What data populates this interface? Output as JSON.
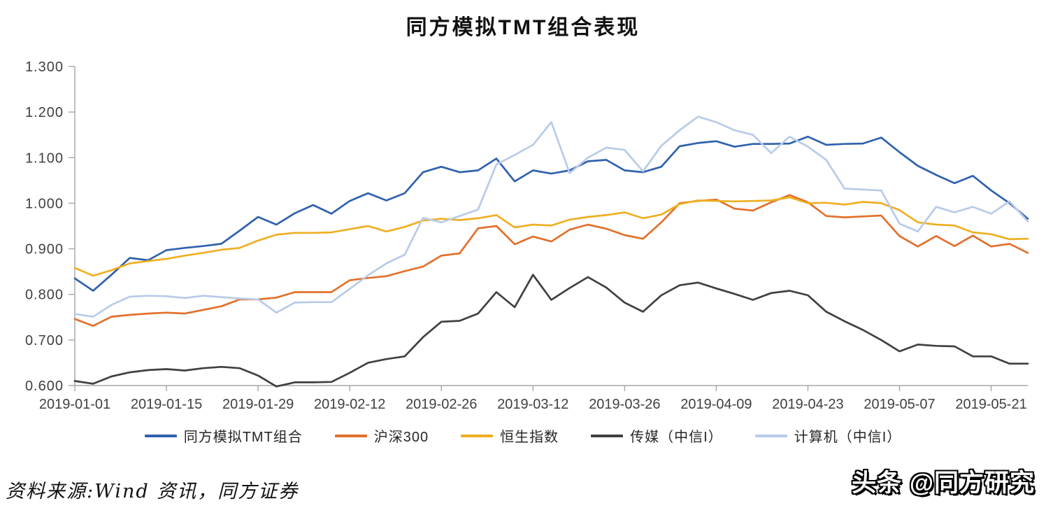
{
  "title": "同方模拟TMT组合表现",
  "source_note": "资料来源:Wind 资讯，同方证券",
  "watermark": "头条 @同方研究",
  "colors": {
    "axis": "#a6a6a6",
    "tick_label": "#404040",
    "background": "#ffffff"
  },
  "chart_data": {
    "type": "line",
    "title": "同方模拟TMT组合表现",
    "xlabel": "",
    "ylabel": "",
    "ylim": [
      0.6,
      1.3
    ],
    "y_ticks": [
      0.6,
      0.7,
      0.8,
      0.9,
      1.0,
      1.1,
      1.2,
      1.3
    ],
    "y_tick_labels": [
      "0.600",
      "0.700",
      "0.800",
      "0.900",
      "1.000",
      "1.100",
      "1.200",
      "1.300"
    ],
    "x_tick_labels": [
      "2019-01-01",
      "2019-01-15",
      "2019-01-29",
      "2019-02-12",
      "2019-02-26",
      "2019-03-12",
      "2019-03-26",
      "2019-04-09",
      "2019-04-23",
      "2019-05-07",
      "2019-05-21"
    ],
    "x_points_per_tick": 5,
    "grid": false,
    "legend_position": "bottom",
    "series": [
      {
        "name": "同方模拟TMT组合",
        "color": "#3061ad",
        "values": [
          0.835,
          0.808,
          0.843,
          0.88,
          0.875,
          0.897,
          0.902,
          0.906,
          0.911,
          0.94,
          0.97,
          0.953,
          0.978,
          0.996,
          0.977,
          1.005,
          1.022,
          1.006,
          1.022,
          1.068,
          1.08,
          1.068,
          1.072,
          1.098,
          1.048,
          1.072,
          1.065,
          1.072,
          1.092,
          1.095,
          1.072,
          1.068,
          1.08,
          1.125,
          1.132,
          1.136,
          1.124,
          1.13,
          1.13,
          1.131,
          1.146,
          1.128,
          1.13,
          1.131,
          1.144,
          1.112,
          1.082,
          1.062,
          1.044,
          1.06,
          1.028,
          1.0,
          0.966
        ]
      },
      {
        "name": "沪深300",
        "color": "#e2702c",
        "values": [
          0.746,
          0.731,
          0.751,
          0.755,
          0.758,
          0.76,
          0.758,
          0.766,
          0.774,
          0.789,
          0.789,
          0.793,
          0.805,
          0.805,
          0.805,
          0.831,
          0.836,
          0.84,
          0.851,
          0.861,
          0.885,
          0.89,
          0.945,
          0.95,
          0.91,
          0.927,
          0.916,
          0.942,
          0.953,
          0.944,
          0.93,
          0.922,
          0.958,
          1.0,
          1.005,
          1.008,
          0.988,
          0.984,
          1.002,
          1.018,
          1.002,
          0.972,
          0.969,
          0.971,
          0.973,
          0.928,
          0.905,
          0.928,
          0.906,
          0.929,
          0.905,
          0.911,
          0.891
        ]
      },
      {
        "name": "恒生指数",
        "color": "#efaf22",
        "values": [
          0.858,
          0.841,
          0.853,
          0.868,
          0.873,
          0.878,
          0.885,
          0.891,
          0.898,
          0.902,
          0.918,
          0.931,
          0.935,
          0.935,
          0.936,
          0.943,
          0.95,
          0.938,
          0.948,
          0.962,
          0.966,
          0.963,
          0.967,
          0.974,
          0.947,
          0.953,
          0.951,
          0.964,
          0.97,
          0.974,
          0.98,
          0.967,
          0.975,
          0.998,
          1.006,
          1.005,
          1.004,
          1.005,
          1.006,
          1.013,
          1.0,
          1.001,
          0.997,
          1.003,
          1.0,
          0.985,
          0.958,
          0.953,
          0.951,
          0.936,
          0.932,
          0.921,
          0.922
        ]
      },
      {
        "name": "传媒（中信I）",
        "color": "#404040",
        "values": [
          0.61,
          0.604,
          0.62,
          0.629,
          0.634,
          0.636,
          0.633,
          0.638,
          0.641,
          0.638,
          0.622,
          0.598,
          0.607,
          0.607,
          0.608,
          0.628,
          0.65,
          0.658,
          0.664,
          0.706,
          0.74,
          0.742,
          0.758,
          0.805,
          0.772,
          0.843,
          0.788,
          0.814,
          0.838,
          0.815,
          0.782,
          0.762,
          0.798,
          0.82,
          0.826,
          0.813,
          0.801,
          0.788,
          0.803,
          0.808,
          0.798,
          0.762,
          0.741,
          0.722,
          0.7,
          0.675,
          0.69,
          0.687,
          0.686,
          0.664,
          0.664,
          0.648,
          0.648
        ]
      },
      {
        "name": "计算机（中信I）",
        "color": "#b8cbe9",
        "values": [
          0.757,
          0.751,
          0.777,
          0.795,
          0.797,
          0.796,
          0.792,
          0.797,
          0.794,
          0.791,
          0.789,
          0.76,
          0.782,
          0.783,
          0.783,
          0.812,
          0.842,
          0.868,
          0.887,
          0.968,
          0.958,
          0.972,
          0.986,
          1.085,
          1.106,
          1.128,
          1.178,
          1.066,
          1.1,
          1.122,
          1.117,
          1.07,
          1.126,
          1.16,
          1.19,
          1.178,
          1.16,
          1.15,
          1.11,
          1.146,
          1.124,
          1.095,
          1.032,
          1.03,
          1.028,
          0.955,
          0.938,
          0.992,
          0.98,
          0.992,
          0.977,
          1.004,
          0.96
        ]
      }
    ]
  }
}
